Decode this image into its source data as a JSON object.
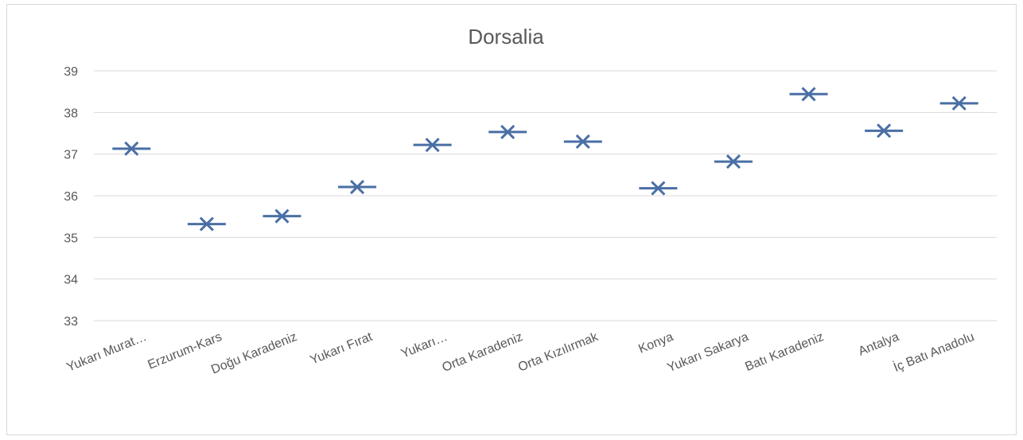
{
  "chart_data": {
    "type": "scatter",
    "title": "Dorsalia",
    "xlabel": "",
    "ylabel": "",
    "ylim": [
      33,
      39
    ],
    "yticks": [
      "33",
      "34",
      "35",
      "36",
      "37",
      "38",
      "39"
    ],
    "grid": true,
    "legend": "none",
    "marker": "x-with-dash",
    "color": "#4a6fa5",
    "categories": [
      "Yukarı Murat…",
      "Erzurum-Kars",
      "Doğu Karadeniz",
      "Yukarı Fırat",
      "Yukarı…",
      "Orta Karadeniz",
      "Orta Kızılırmak",
      "Konya",
      "Yukarı Sakarya",
      "Batı Karadeniz",
      "Antalya",
      "İç Batı Anadolu"
    ],
    "values": [
      37.13,
      35.32,
      35.51,
      36.21,
      37.22,
      37.53,
      37.3,
      36.18,
      36.82,
      38.44,
      37.56,
      38.22
    ]
  }
}
